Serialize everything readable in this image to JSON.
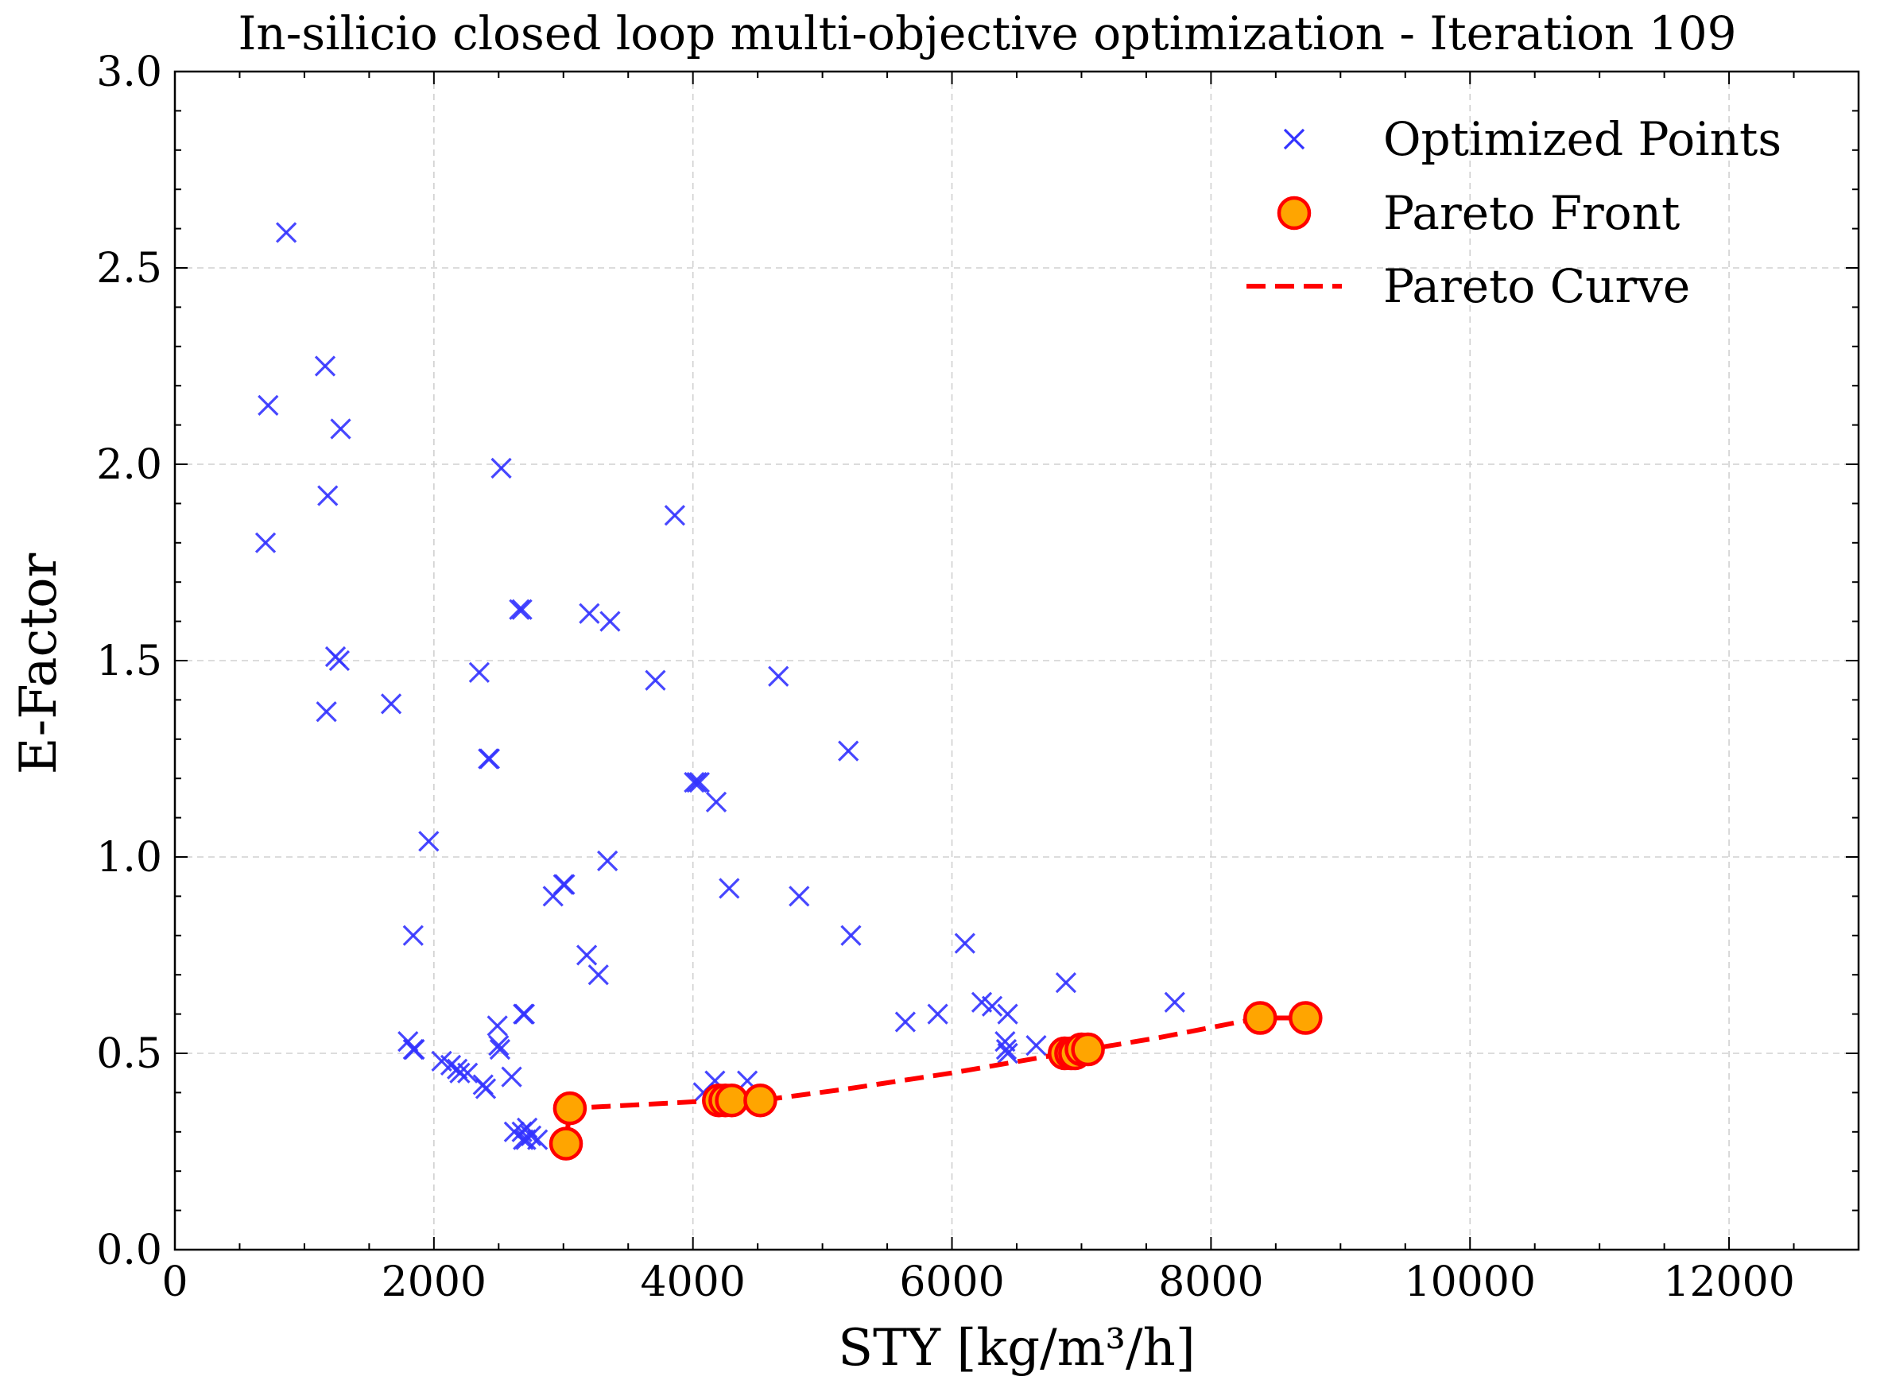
{
  "chart_data": {
    "type": "scatter",
    "title": "In-silicio closed loop multi-objective optimization - Iteration 109",
    "xlabel": "STY [kg/m³/h]",
    "ylabel": "E-Factor",
    "xlim": [
      0,
      13000
    ],
    "ylim": [
      0,
      3.0
    ],
    "xticks": [
      0,
      2000,
      4000,
      6000,
      8000,
      10000,
      12000
    ],
    "xtick_labels": [
      "0",
      "2000",
      "4000",
      "6000",
      "8000",
      "10000",
      "12000"
    ],
    "yticks": [
      0,
      0.5,
      1.0,
      1.5,
      2.0,
      2.5,
      3.0
    ],
    "ytick_labels": [
      "0.0",
      "0.5",
      "1.0",
      "1.5",
      "2.0",
      "2.5",
      "3.0"
    ],
    "grid": true,
    "legend_position": "top-right",
    "series": [
      {
        "name": "Optimized Points",
        "kind": "scatter",
        "marker": "x",
        "color": "#3333ff",
        "points": [
          [
            860,
            2.59
          ],
          [
            720,
            2.15
          ],
          [
            1160,
            2.25
          ],
          [
            1280,
            2.09
          ],
          [
            1180,
            1.92
          ],
          [
            700,
            1.8
          ],
          [
            1240,
            1.51
          ],
          [
            1270,
            1.5
          ],
          [
            1170,
            1.37
          ],
          [
            1670,
            1.39
          ],
          [
            2520,
            1.99
          ],
          [
            3860,
            1.87
          ],
          [
            2660,
            1.63
          ],
          [
            2680,
            1.63
          ],
          [
            3200,
            1.62
          ],
          [
            3360,
            1.6
          ],
          [
            2350,
            1.47
          ],
          [
            3710,
            1.45
          ],
          [
            4660,
            1.46
          ],
          [
            2420,
            1.25
          ],
          [
            2430,
            1.25
          ],
          [
            5200,
            1.27
          ],
          [
            4010,
            1.19
          ],
          [
            4030,
            1.19
          ],
          [
            4050,
            1.19
          ],
          [
            4180,
            1.14
          ],
          [
            1960,
            1.04
          ],
          [
            3340,
            0.99
          ],
          [
            3000,
            0.93
          ],
          [
            3010,
            0.93
          ],
          [
            2920,
            0.9
          ],
          [
            4280,
            0.92
          ],
          [
            4820,
            0.9
          ],
          [
            1840,
            0.8
          ],
          [
            5220,
            0.8
          ],
          [
            6100,
            0.78
          ],
          [
            3180,
            0.75
          ],
          [
            3270,
            0.7
          ],
          [
            6880,
            0.68
          ],
          [
            7720,
            0.63
          ],
          [
            6230,
            0.63
          ],
          [
            6310,
            0.62
          ],
          [
            6430,
            0.6
          ],
          [
            5890,
            0.6
          ],
          [
            5640,
            0.58
          ],
          [
            2700,
            0.6
          ],
          [
            2690,
            0.6
          ],
          [
            2490,
            0.57
          ],
          [
            1800,
            0.53
          ],
          [
            1840,
            0.51
          ],
          [
            1850,
            0.51
          ],
          [
            2500,
            0.52
          ],
          [
            2510,
            0.51
          ],
          [
            6410,
            0.53
          ],
          [
            6420,
            0.51
          ],
          [
            6430,
            0.5
          ],
          [
            6650,
            0.52
          ],
          [
            2060,
            0.48
          ],
          [
            2130,
            0.47
          ],
          [
            2180,
            0.46
          ],
          [
            2200,
            0.45
          ],
          [
            2260,
            0.45
          ],
          [
            2600,
            0.44
          ],
          [
            2380,
            0.42
          ],
          [
            2400,
            0.41
          ],
          [
            4170,
            0.43
          ],
          [
            4420,
            0.43
          ],
          [
            4080,
            0.4
          ],
          [
            2620,
            0.3
          ],
          [
            2680,
            0.3
          ],
          [
            2720,
            0.31
          ],
          [
            2750,
            0.29
          ],
          [
            2690,
            0.28
          ],
          [
            2710,
            0.28
          ],
          [
            2800,
            0.28
          ]
        ]
      },
      {
        "name": "Pareto Front",
        "kind": "scatter",
        "marker": "o",
        "color": "#ffa500",
        "edge_color": "#ff0000",
        "points": [
          [
            3020,
            0.27
          ],
          [
            3050,
            0.36
          ],
          [
            4200,
            0.38
          ],
          [
            4250,
            0.38
          ],
          [
            4300,
            0.38
          ],
          [
            4520,
            0.38
          ],
          [
            6870,
            0.5
          ],
          [
            6920,
            0.5
          ],
          [
            6950,
            0.5
          ],
          [
            7000,
            0.51
          ],
          [
            7050,
            0.51
          ],
          [
            8380,
            0.59
          ],
          [
            8730,
            0.59
          ]
        ]
      },
      {
        "name": "Pareto Curve",
        "kind": "line",
        "style": "dashed",
        "color": "#ff0000",
        "points": [
          [
            3020,
            0.27
          ],
          [
            3050,
            0.36
          ],
          [
            4200,
            0.38
          ],
          [
            4520,
            0.38
          ],
          [
            5200,
            0.41
          ],
          [
            6000,
            0.45
          ],
          [
            6870,
            0.5
          ],
          [
            7050,
            0.51
          ],
          [
            7600,
            0.54
          ],
          [
            8380,
            0.59
          ],
          [
            8730,
            0.59
          ]
        ]
      }
    ]
  }
}
